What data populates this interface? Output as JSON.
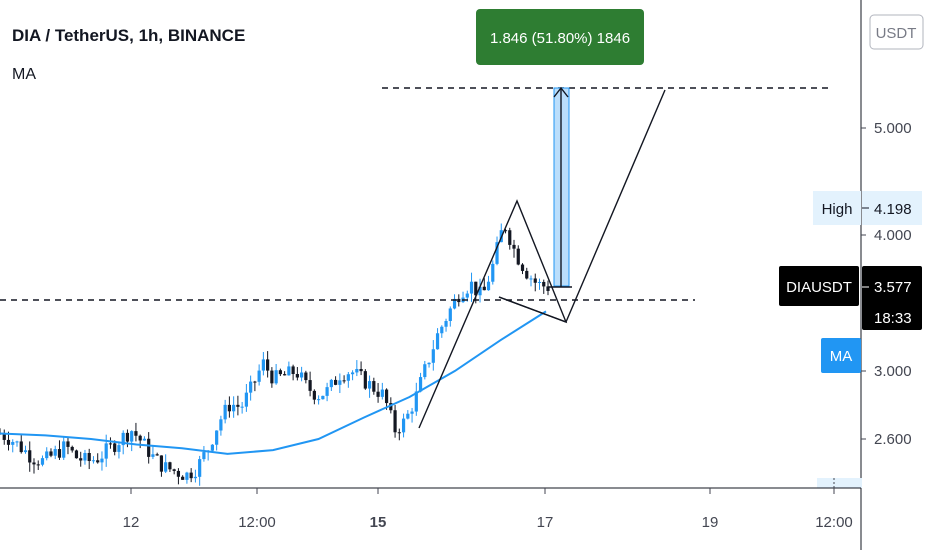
{
  "header": {
    "title": "DIA / TetherUS, 1h, BINANCE",
    "indicator": "MA"
  },
  "currency_button": "USDT",
  "measure_label": "1.846 (51.80%) 1846",
  "price_labels": {
    "high_name": "High",
    "high_value": "4.198",
    "symbol": "DIAUSDT",
    "last_value": "3.577",
    "countdown": "18:33",
    "ma_name": "MA"
  },
  "colors": {
    "up": "#2196f3",
    "down": "#131722",
    "ma": "#2196f3",
    "measure_bg": "#2e7d32",
    "measure_box": "#bbdefb",
    "label_bg": "#000000"
  },
  "chart_data": {
    "type": "candlestick",
    "title": "DIA / TetherUS, 1h, BINANCE",
    "y_scale": "log",
    "ylim": [
      2.37,
      6.4
    ],
    "y_ticks": [
      "5.000",
      "4.000",
      "3.000",
      "2.600"
    ],
    "x_ticks": [
      "12",
      "12:00",
      "15",
      "17",
      "19",
      "12:00"
    ],
    "series": [
      {
        "name": "MA",
        "points": [
          {
            "t": "10 21:00",
            "y": 2.63
          },
          {
            "t": "11 09:00",
            "y": 2.62
          },
          {
            "t": "11 21:00",
            "y": 2.6
          },
          {
            "t": "12 09:00",
            "y": 2.57
          },
          {
            "t": "12 21:00",
            "y": 2.55
          },
          {
            "t": "13 09:00",
            "y": 2.52
          },
          {
            "t": "13 21:00",
            "y": 2.54
          },
          {
            "t": "14 09:00",
            "y": 2.6
          },
          {
            "t": "14 21:00",
            "y": 2.72
          },
          {
            "t": "15 09:00",
            "y": 2.84
          },
          {
            "t": "15 21:00",
            "y": 3.0
          },
          {
            "t": "16 09:00",
            "y": 3.2
          },
          {
            "t": "16 21:00",
            "y": 3.4
          }
        ]
      }
    ],
    "ohlc_path": [
      2.63,
      2.6,
      2.55,
      2.5,
      2.48,
      2.52,
      2.56,
      2.5,
      2.48,
      2.5,
      2.55,
      2.6,
      2.65,
      2.58,
      2.5,
      2.45,
      2.43,
      2.41,
      2.45,
      2.55,
      2.7,
      2.8,
      2.78,
      2.9,
      3.05,
      2.95,
      2.97,
      3.0,
      2.9,
      2.85,
      2.88,
      2.98,
      3.0,
      2.95,
      2.9,
      2.85,
      2.65,
      2.7,
      2.85,
      3.05,
      3.25,
      3.4,
      3.55,
      3.6,
      3.5,
      3.75,
      4.1,
      3.85,
      3.7,
      3.6,
      3.58
    ],
    "annotations": {
      "resistance_level": 3.56,
      "target_level": 5.4,
      "measure_top": 5.4,
      "measure_bottom": 3.62
    }
  }
}
